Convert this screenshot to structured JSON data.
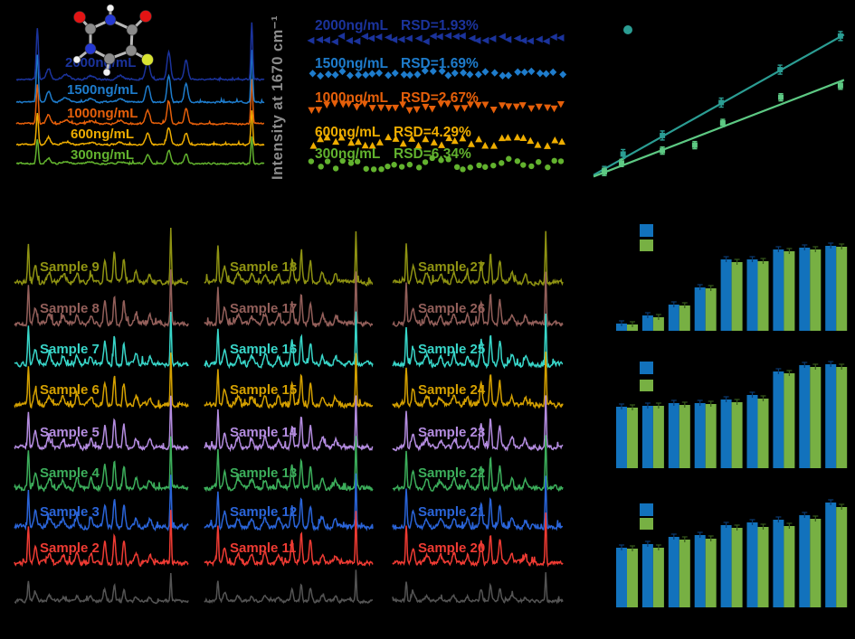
{
  "figure": {
    "background": "#000000",
    "description": "Multi-panel SERS figure"
  },
  "chart_data": [
    {
      "id": "concentration_spectra",
      "type": "line",
      "name": "SERS spectra at five concentrations with molecule inset",
      "series": [
        {
          "label": "2000ng/mL",
          "color": "#1b339c"
        },
        {
          "label": "1500ng/mL",
          "color": "#1e7ccc"
        },
        {
          "label": "1000ng/mL",
          "color": "#e55f0a"
        },
        {
          "label": "600ng/mL",
          "color": "#eead00"
        },
        {
          "label": "300ng/mL",
          "color": "#62b22e"
        }
      ],
      "relative_amplitudes": [
        1.0,
        0.93,
        0.79,
        0.61,
        0.48
      ],
      "peak_positions_rel": [
        0.085,
        0.13,
        0.53,
        0.615,
        0.685,
        0.95
      ],
      "molecule": {
        "name": "5-fluorouracil ball-and-stick model",
        "atom_colors": {
          "C": "#8a8a8a",
          "N": "#2438d2",
          "O": "#e21414",
          "H": "#f2f2f2",
          "F": "#d8e332"
        }
      }
    },
    {
      "id": "intensity_scatter",
      "type": "scatter",
      "ylabel": "Intensity at 1670 cm⁻¹",
      "ylabel_color": "#8c8c8c",
      "points_per_series": 34,
      "series": [
        {
          "label": "2000ng/mL",
          "rsd": "RSD=1.93%",
          "color": "#1b339c",
          "marker": "triangle-left"
        },
        {
          "label": "1500ng/mL",
          "rsd": "RSD=1.69%",
          "color": "#1e7ccc",
          "marker": "diamond"
        },
        {
          "label": "1000ng/mL",
          "rsd": "RSD=2.67%",
          "color": "#e55f0a",
          "marker": "triangle-down"
        },
        {
          "label": "600ng/mL",
          "rsd": "RSD=4.29%",
          "color": "#eead00",
          "marker": "triangle-up"
        },
        {
          "label": "300ng/mL",
          "rsd": "RSD=6.34%",
          "color": "#62b22e",
          "marker": "circle"
        }
      ]
    },
    {
      "id": "calibration",
      "type": "scatter",
      "name": "two linear calibration curves (axis text not visible)",
      "legend_marker_color": "#2b9d93",
      "series": [
        {
          "name": "series-teal",
          "color": "#2b9d93",
          "marker": "square",
          "x_rel": [
            0.042,
            0.115,
            0.268,
            0.497,
            0.726,
            0.961
          ],
          "y_rel": [
            0.047,
            0.159,
            0.282,
            0.5,
            0.718,
            0.941
          ]
        },
        {
          "name": "series-green",
          "color": "#5dc983",
          "marker": "square",
          "x_rel": [
            0.042,
            0.109,
            0.268,
            0.394,
            0.503,
            0.729,
            0.961
          ],
          "y_rel": [
            0.041,
            0.1,
            0.182,
            0.218,
            0.365,
            0.535,
            0.612
          ]
        }
      ],
      "fit_lines": [
        {
          "color": "#2b9d93",
          "x1_rel": 0.0,
          "y1_rel": 0.02,
          "x2_rel": 0.975,
          "y2_rel": 0.95
        },
        {
          "color": "#5dc983",
          "x1_rel": 0.0,
          "y1_rel": 0.01,
          "x2_rel": 0.975,
          "y2_rel": 0.65
        }
      ]
    },
    {
      "id": "sample_spectra",
      "type": "line",
      "name": "27 sample SERS spectra in 3 columns (bottom gray rows unlabeled)",
      "columns": [
        {
          "labels": [
            "Sample 9",
            "Sample 8",
            "Sample 7",
            "Sample 6",
            "Sample 5",
            "Sample 4",
            "Sample 3",
            "Sample 2",
            ""
          ]
        },
        {
          "labels": [
            "Sample 18",
            "Sample 17",
            "Sample 16",
            "Sample 15",
            "Sample 14",
            "Sample 13",
            "Sample 12",
            "Sample 11",
            ""
          ]
        },
        {
          "labels": [
            "Sample 27",
            "Sample 26",
            "Sample 25",
            "Sample 24",
            "Sample 23",
            "Sample 22",
            "Sample 21",
            "Sample 20",
            ""
          ]
        }
      ],
      "row_colors": [
        "#8f9312",
        "#935f5a",
        "#38d6c9",
        "#d4a000",
        "#b48ce0",
        "#3cae5b",
        "#2a64d8",
        "#ef3b33",
        "#545454"
      ]
    },
    {
      "id": "bar_chart_1",
      "type": "bar",
      "name": "grouped bar chart 1 (axis labels not visible)",
      "units": "arbitrary (tick text not visible in image)",
      "legend_colors": [
        "#1272bc",
        "#77b043"
      ],
      "series": [
        {
          "name": "blue",
          "color": "#1272bc",
          "values": [
            8,
            17,
            29,
            48,
            79,
            79,
            90,
            92,
            94
          ]
        },
        {
          "name": "green",
          "color": "#77b043",
          "values": [
            7,
            15,
            28,
            47,
            76,
            77,
            88,
            90,
            93
          ]
        }
      ]
    },
    {
      "id": "bar_chart_2",
      "type": "bar",
      "name": "grouped bar chart 2 (axis labels not visible)",
      "units": "arbitrary (tick text not visible in image)",
      "legend_colors": [
        "#1272bc",
        "#77b043"
      ],
      "series": [
        {
          "name": "blue",
          "color": "#1272bc",
          "values": [
            68,
            69,
            72,
            72,
            76,
            81,
            107,
            114,
            115
          ]
        },
        {
          "name": "green",
          "color": "#77b043",
          "values": [
            67,
            69,
            70,
            71,
            73,
            77,
            105,
            112,
            112
          ]
        }
      ]
    },
    {
      "id": "bar_chart_3",
      "type": "bar",
      "name": "grouped bar chart 3 (axis labels not visible)",
      "units": "arbitrary (tick text not visible in image)",
      "legend_colors": [
        "#1272bc",
        "#77b043"
      ],
      "series": [
        {
          "name": "blue",
          "color": "#1272bc",
          "values": [
            66,
            70,
            78,
            80,
            91,
            94,
            97,
            102,
            116
          ]
        },
        {
          "name": "green",
          "color": "#77b043",
          "values": [
            65,
            66,
            75,
            76,
            88,
            89,
            90,
            98,
            111
          ]
        }
      ]
    }
  ]
}
